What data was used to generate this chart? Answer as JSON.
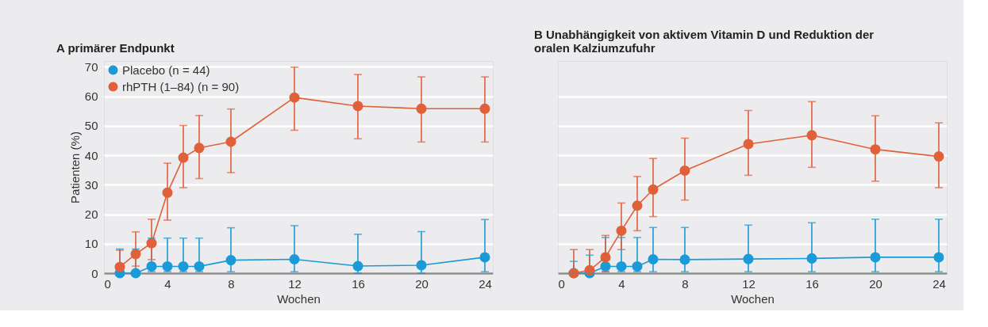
{
  "chart_data": [
    {
      "type": "line",
      "title": "A primärer Endpunkt",
      "xlabel": "Wochen",
      "ylabel": "Patienten (%)",
      "x": [
        1,
        2,
        3,
        4,
        5,
        6,
        8,
        12,
        16,
        20,
        24
      ],
      "series": [
        {
          "name": "Placebo (n = 44)",
          "color": "#1a9ad6",
          "values": [
            0,
            0,
            2.3,
            2.3,
            2.3,
            2.3,
            4.4,
            4.7,
            2.4,
            2.7,
            5.4
          ],
          "errors": [
            [
              0,
              8.2
            ],
            [
              0,
              8.2
            ],
            [
              0.5,
              11.9
            ],
            [
              0.5,
              11.9
            ],
            [
              0.5,
              11.9
            ],
            [
              0.5,
              11.9
            ],
            [
              0.5,
              15.4
            ],
            [
              0.5,
              16.1
            ],
            [
              0,
              13.2
            ],
            [
              0,
              14.1
            ],
            [
              0.5,
              18.2
            ]
          ]
        },
        {
          "name": "rhPTH (1–84) (n = 90)",
          "color": "#e0603a",
          "values": [
            2.1,
            6.5,
            10.2,
            27.3,
            39.2,
            42.5,
            44.6,
            59.6,
            56.7,
            55.8,
            55.8
          ],
          "errors": [
            [
              2.1,
              7.8
            ],
            [
              2.4,
              14
            ],
            [
              4.6,
              18.3
            ],
            [
              18,
              37.3
            ],
            [
              29,
              50.1
            ],
            [
              32.1,
              53.5
            ],
            [
              34.1,
              55.7
            ],
            [
              48.5,
              69.9
            ],
            [
              45.6,
              67.4
            ],
            [
              44.5,
              66.6
            ],
            [
              44.5,
              66.6
            ]
          ]
        }
      ],
      "xlim": [
        0,
        24.5
      ],
      "xticks": [
        0,
        4,
        8,
        12,
        16,
        20,
        24
      ],
      "ylim": [
        0,
        72
      ],
      "yticks": [
        0,
        10,
        20,
        30,
        40,
        50,
        60,
        70
      ],
      "grid": "y",
      "marker": "circle",
      "line_style": "solid",
      "legend": "top left"
    },
    {
      "type": "line",
      "title": "B Unabhängigkeit von aktivem Vitamin D und Reduktion der oralen Kalziumzufuhr",
      "xlabel": "Wochen",
      "x": [
        1,
        2,
        3,
        4,
        5,
        6,
        8,
        12,
        16,
        20,
        24
      ],
      "series": [
        {
          "color": "#1a9ad6",
          "values": [
            0,
            0,
            2.3,
            2.3,
            2.3,
            4.7,
            4.6,
            4.8,
            5.0,
            5.4,
            5.4
          ],
          "errors": [
            [
              0,
              4
            ],
            [
              0,
              6.1
            ],
            [
              0.5,
              12.1
            ],
            [
              0.5,
              12.1
            ],
            [
              0.5,
              12.1
            ],
            [
              0.5,
              15.5
            ],
            [
              0.5,
              15.5
            ],
            [
              0.5,
              16.3
            ],
            [
              0.5,
              17.1
            ],
            [
              0.5,
              18.3
            ],
            [
              0.5,
              18.3
            ]
          ]
        },
        {
          "color": "#e0603a",
          "values": [
            0,
            1,
            5.4,
            14.4,
            22.9,
            28.4,
            34.8,
            43.8,
            46.8,
            42,
            39.6
          ],
          "errors": [
            [
              0,
              8
            ],
            [
              0,
              8
            ],
            [
              0.5,
              12.8
            ],
            [
              8,
              23.8
            ],
            [
              14.4,
              32.8
            ],
            [
              19.2,
              38.9
            ],
            [
              24.8,
              45.8
            ],
            [
              33.2,
              55.2
            ],
            [
              35.9,
              58.2
            ],
            [
              31.2,
              53.4
            ],
            [
              29,
              51
            ]
          ]
        }
      ],
      "xlim": [
        0,
        24.5
      ],
      "xticks": [
        0,
        4,
        8,
        12,
        16,
        20,
        24
      ],
      "ylim": [
        0,
        72
      ],
      "yticks": [
        0,
        10,
        20,
        30,
        40,
        50,
        60
      ],
      "grid": "y",
      "marker": "circle",
      "line_style": "solid",
      "tick_labels": "x"
    }
  ]
}
